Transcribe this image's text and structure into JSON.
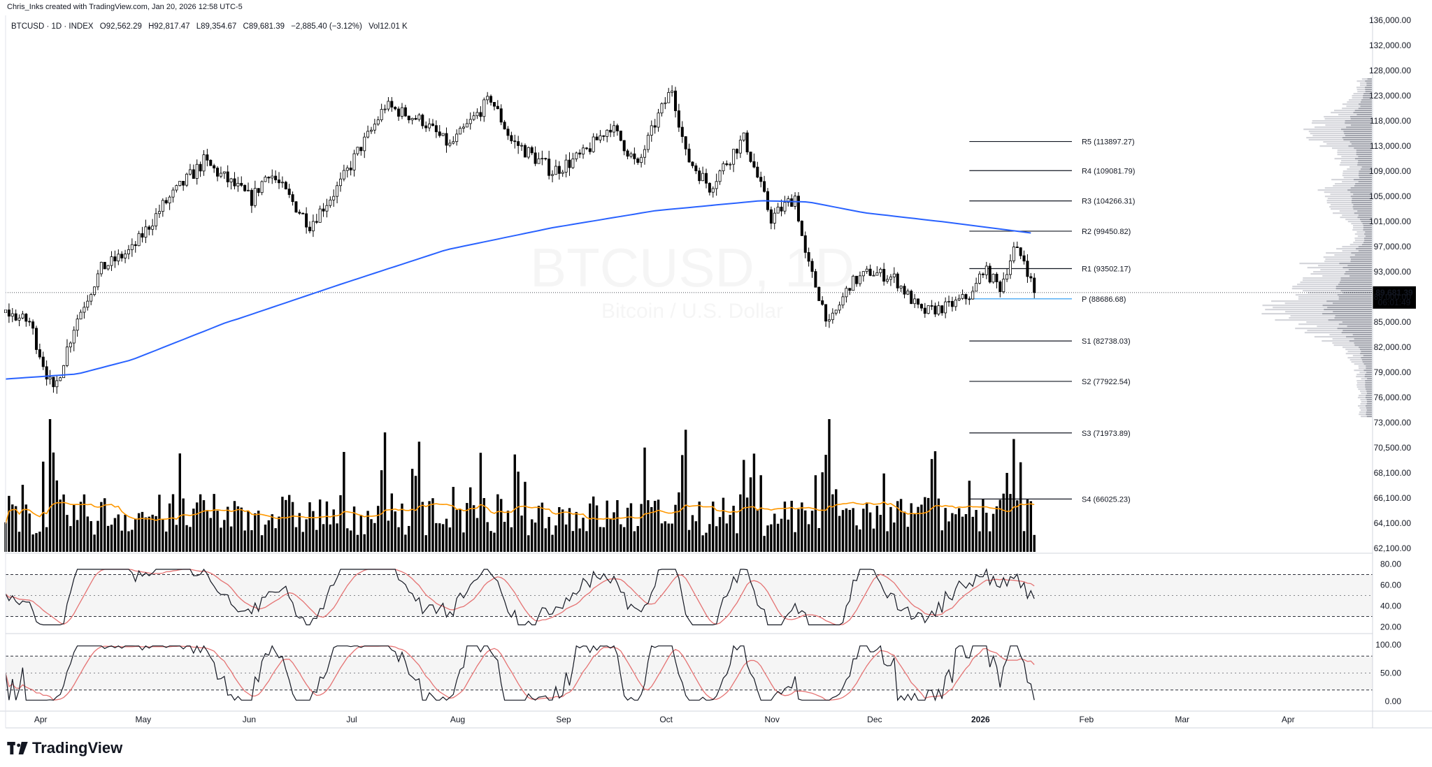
{
  "header": {
    "attribution": "Chris_Inks created with TradingView.com, Jan 20, 2026 12:58 UTC-5",
    "symbol": "BTCUSD · 1D · INDEX",
    "open": "O92,562.29",
    "high": "H92,817.47",
    "low": "L89,354.67",
    "close": "C89,681.39",
    "change": "−2,885.40 (−3.12%)",
    "volume": "Vol12.01 K"
  },
  "watermark": {
    "symbol": "BTCUSD, 1D",
    "name": "Bitcoin / U.S. Dollar"
  },
  "price_tag": {
    "price": "89,681.39",
    "countdown": "06:01:49"
  },
  "footer": {
    "brand": "TradingView"
  },
  "colors": {
    "ma": "#2962ff",
    "volume_ma": "#ff9800",
    "rsi": "#131722",
    "rsi_ma": "#e57373",
    "pivot_p": "#2196f3",
    "candle": "#000000"
  },
  "chart_data": [
    {
      "type": "candlestick",
      "y_scale": "price",
      "y_ticks": [
        "136,000.00",
        "132,000.00",
        "128,000.00",
        "123,000.00",
        "118,000.00",
        "113,000.00",
        "109,000.00",
        "105,000.00",
        "101,000.00",
        "97,000.00",
        "93,000.00",
        "89,000.00",
        "85,000.00",
        "82,000.00",
        "79,000.00",
        "76,000.00",
        "73,000.00",
        "70,500.00",
        "68,100.00",
        "66,100.00",
        "64,100.00",
        "62,100.00"
      ],
      "x_ticks": [
        "Apr",
        "May",
        "Jun",
        "Jul",
        "Aug",
        "Sep",
        "Oct",
        "Nov",
        "Dec",
        "2026",
        "Feb",
        "Mar",
        "Apr"
      ],
      "x_range": [
        "2025-03-25",
        "2026-04-30"
      ],
      "price_anchors": [
        [
          "2025-03-25",
          86500
        ],
        [
          "2025-04-01",
          85000
        ],
        [
          "2025-04-08",
          76500
        ],
        [
          "2025-04-14",
          84500
        ],
        [
          "2025-04-22",
          93500
        ],
        [
          "2025-05-01",
          96500
        ],
        [
          "2025-05-10",
          103500
        ],
        [
          "2025-05-22",
          110500
        ],
        [
          "2025-06-05",
          104500
        ],
        [
          "2025-06-10",
          109000
        ],
        [
          "2025-06-22",
          100500
        ],
        [
          "2025-07-01",
          107000
        ],
        [
          "2025-07-10",
          116000
        ],
        [
          "2025-07-14",
          121000
        ],
        [
          "2025-07-25",
          118000
        ],
        [
          "2025-08-02",
          113000
        ],
        [
          "2025-08-14",
          122500
        ],
        [
          "2025-08-20",
          114000
        ],
        [
          "2025-09-01",
          109000
        ],
        [
          "2025-09-10",
          111500
        ],
        [
          "2025-09-18",
          117000
        ],
        [
          "2025-09-26",
          109500
        ],
        [
          "2025-10-02",
          119000
        ],
        [
          "2025-10-06",
          124500
        ],
        [
          "2025-10-10",
          111500
        ],
        [
          "2025-10-17",
          106500
        ],
        [
          "2025-10-27",
          114500
        ],
        [
          "2025-11-04",
          101500
        ],
        [
          "2025-11-11",
          105000
        ],
        [
          "2025-11-14",
          95500
        ],
        [
          "2025-11-21",
          84500
        ],
        [
          "2025-11-27",
          91000
        ],
        [
          "2025-12-03",
          93000
        ],
        [
          "2025-12-10",
          92000
        ],
        [
          "2025-12-18",
          86500
        ],
        [
          "2025-12-26",
          87500
        ],
        [
          "2026-01-02",
          89500
        ],
        [
          "2026-01-05",
          93500
        ],
        [
          "2026-01-10",
          90500
        ],
        [
          "2026-01-14",
          96500
        ],
        [
          "2026-01-17",
          95000
        ],
        [
          "2026-01-20",
          89681
        ]
      ],
      "ma_200": [
        [
          "2025-03-25",
          78200
        ],
        [
          "2025-04-15",
          78800
        ],
        [
          "2025-05-01",
          80500
        ],
        [
          "2025-06-01",
          85500
        ],
        [
          "2025-07-01",
          91000
        ],
        [
          "2025-08-01",
          96500
        ],
        [
          "2025-09-01",
          100000
        ],
        [
          "2025-10-01",
          102700
        ],
        [
          "2025-11-01",
          104300
        ],
        [
          "2025-11-15",
          104100
        ],
        [
          "2025-12-01",
          102400
        ],
        [
          "2025-12-25",
          100900
        ],
        [
          "2026-01-20",
          99100
        ]
      ],
      "pivots": [
        {
          "label": "R5 (113897.27)",
          "value": 113897.27
        },
        {
          "label": "R4 (109081.79)",
          "value": 109081.79
        },
        {
          "label": "R3 (104266.31)",
          "value": 104266.31
        },
        {
          "label": "R2 (99450.82)",
          "value": 99450.82
        },
        {
          "label": "R1 (93502.17)",
          "value": 93502.17
        },
        {
          "label": "P (88686.68)",
          "value": 88686.68
        },
        {
          "label": "S1 (82738.03)",
          "value": 82738.03
        },
        {
          "label": "S2 (77922.54)",
          "value": 77922.54
        },
        {
          "label": "S3 (71973.89)",
          "value": 71973.89
        },
        {
          "label": "S4 (66025.23)",
          "value": 66025.23
        }
      ],
      "last_price": 89681.39
    },
    {
      "type": "bar",
      "name": "volume",
      "x_range": [
        "2025-03-25",
        "2026-01-20"
      ],
      "spikes": [
        [
          "2025-04-07",
          1.0
        ],
        [
          "2025-07-14",
          0.9
        ],
        [
          "2025-07-24",
          0.83
        ],
        [
          "2025-10-10",
          0.92
        ],
        [
          "2025-11-21",
          1.0
        ],
        [
          "2026-01-14",
          0.85
        ]
      ]
    },
    {
      "type": "line",
      "name": "rsi",
      "y_ticks": [
        "80.00",
        "60.00",
        "40.00",
        "20.00"
      ],
      "bands": [
        70,
        50,
        30
      ],
      "ylim": [
        15,
        85
      ]
    },
    {
      "type": "line",
      "name": "stochastic",
      "y_ticks": [
        "100.00",
        "50.00",
        "0.00"
      ],
      "bands": [
        80,
        50,
        20
      ],
      "ylim": [
        -10,
        110
      ]
    }
  ]
}
